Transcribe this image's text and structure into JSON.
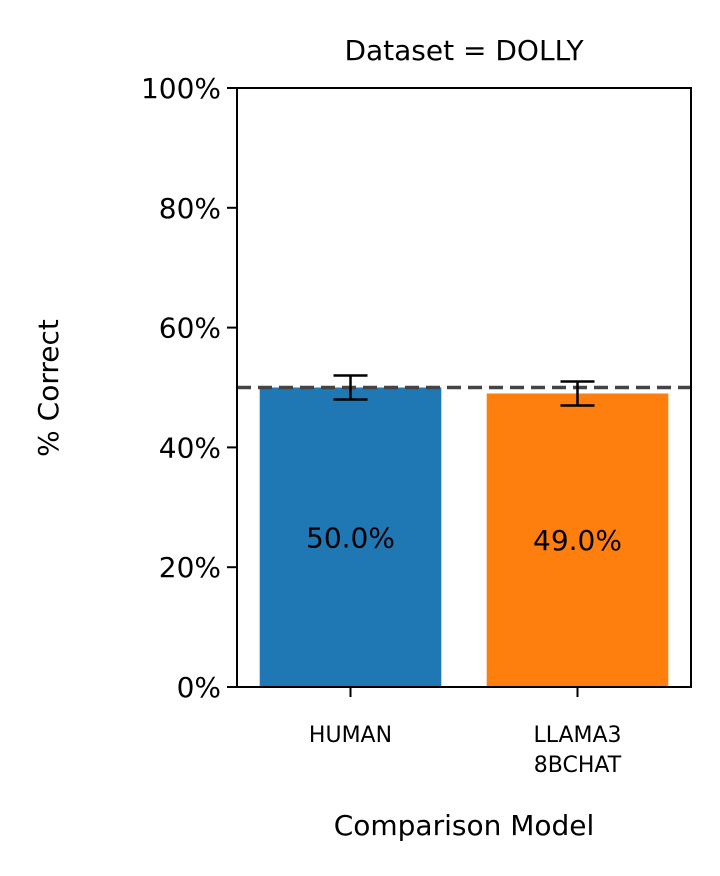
{
  "chart_data": {
    "type": "bar",
    "title": "Dataset = DOLLY",
    "xlabel": "Comparison Model",
    "ylabel": "% Correct",
    "ylim": [
      0,
      1
    ],
    "ytick_values": [
      0,
      0.2,
      0.4,
      0.6,
      0.8,
      1.0
    ],
    "ytick_labels": [
      "0%",
      "20%",
      "40%",
      "60%",
      "80%",
      "100%"
    ],
    "categories": [
      [
        "HUMAN"
      ],
      [
        "LLAMA3",
        "8BCHAT"
      ]
    ],
    "values": [
      0.5,
      0.49
    ],
    "value_labels": [
      "50.0%",
      "49.0%"
    ],
    "error_low": [
      0.48,
      0.47
    ],
    "error_high": [
      0.52,
      0.51
    ],
    "colors": [
      "#1f77b4",
      "#ff7f0e"
    ],
    "reference_line": {
      "y": 0.5,
      "style": "dashed",
      "color": "#444444"
    },
    "grid": false,
    "legend": "none"
  }
}
